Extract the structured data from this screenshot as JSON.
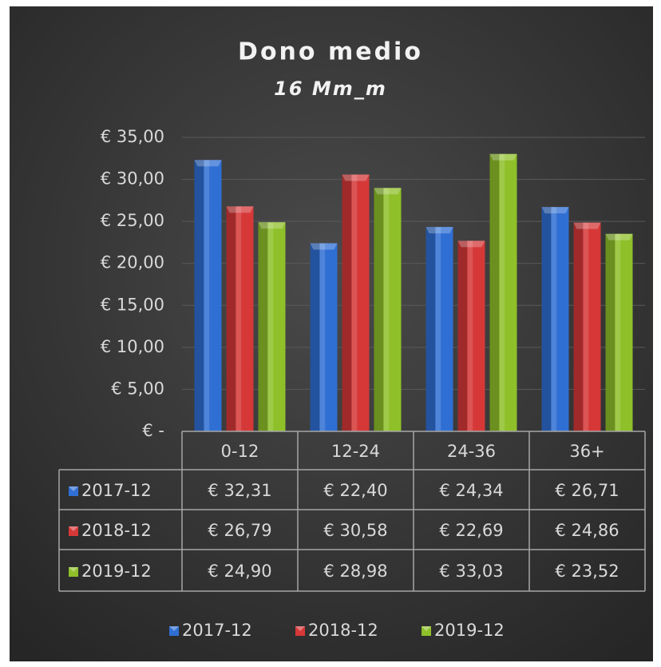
{
  "chart_data": {
    "type": "bar",
    "title": "Dono medio",
    "subtitle": "16 Mm_m",
    "categories": [
      "0-12",
      "12-24",
      "24-36",
      "36+"
    ],
    "series": [
      {
        "name": "2017-12",
        "color": "#2f6fd3",
        "values": [
          32.31,
          22.4,
          24.34,
          26.71
        ],
        "value_labels": [
          "€ 32,31",
          "€ 22,40",
          "€ 24,34",
          "€ 26,71"
        ]
      },
      {
        "name": "2018-12",
        "color": "#d63838",
        "values": [
          26.79,
          30.58,
          22.69,
          24.86
        ],
        "value_labels": [
          "€ 26,79",
          "€ 30,58",
          "€ 22,69",
          "€ 24,86"
        ]
      },
      {
        "name": "2019-12",
        "color": "#8fc02a",
        "values": [
          24.9,
          28.98,
          33.03,
          23.52
        ],
        "value_labels": [
          "€ 24,90",
          "€ 28,98",
          "€ 33,03",
          "€ 23,52"
        ]
      }
    ],
    "ylim": [
      0,
      35
    ],
    "yticks": [
      {
        "value": 0,
        "label": "€ -"
      },
      {
        "value": 5,
        "label": "€ 5,00"
      },
      {
        "value": 10,
        "label": "€ 10,00"
      },
      {
        "value": 15,
        "label": "€ 15,00"
      },
      {
        "value": 20,
        "label": "€ 20,00"
      },
      {
        "value": 25,
        "label": "€ 25,00"
      },
      {
        "value": 30,
        "label": "€ 30,00"
      },
      {
        "value": 35,
        "label": "€ 35,00"
      }
    ],
    "grid": true,
    "legend": "bottom"
  }
}
